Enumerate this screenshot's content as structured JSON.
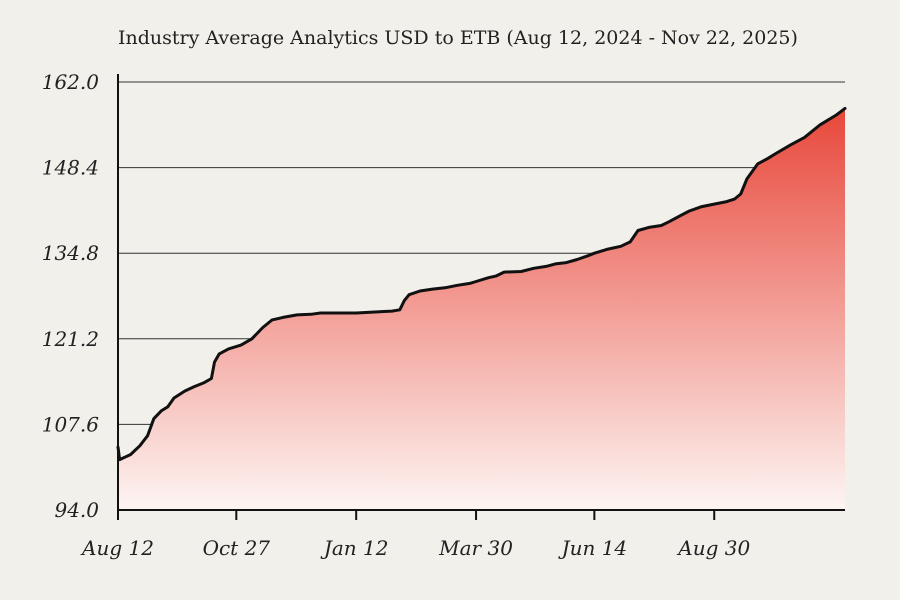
{
  "chart_data": {
    "type": "area",
    "title": "Industry Average Analytics  USD to ETB (Aug 12, 2024 - Nov 22, 2025)",
    "xlabel": "",
    "ylabel": "",
    "x_range": [
      "2024-08-12",
      "2025-11-22"
    ],
    "ylim": [
      94.0,
      162.0
    ],
    "yticks": [
      "94.0",
      "107.6",
      "121.2",
      "134.8",
      "148.4",
      "162.0"
    ],
    "xticks": [
      {
        "label": "Aug 12",
        "date": "2024-08-12"
      },
      {
        "label": "Oct 27",
        "date": "2024-10-27"
      },
      {
        "label": "Jan 12",
        "date": "2025-01-12"
      },
      {
        "label": "Mar 30",
        "date": "2025-03-30"
      },
      {
        "label": "Jun 14",
        "date": "2025-06-14"
      },
      {
        "label": "Aug 30",
        "date": "2025-08-30"
      }
    ],
    "grid": "horizontal",
    "colors": {
      "line": "#111111",
      "fill_top": "#e8473a",
      "fill_bottom": "#fdf5f3",
      "grid": "#333333",
      "background": "#f2f0eb"
    },
    "series": [
      {
        "points": [
          [
            "2024-08-12",
            104.0
          ],
          [
            "2024-08-13",
            102.0
          ],
          [
            "2024-08-20",
            102.8
          ],
          [
            "2024-08-26",
            104.2
          ],
          [
            "2024-08-31",
            105.8
          ],
          [
            "2024-09-04",
            108.5
          ],
          [
            "2024-09-09",
            109.8
          ],
          [
            "2024-09-13",
            110.4
          ],
          [
            "2024-09-17",
            111.8
          ],
          [
            "2024-09-24",
            112.9
          ],
          [
            "2024-09-30",
            113.6
          ],
          [
            "2024-10-06",
            114.2
          ],
          [
            "2024-10-11",
            114.9
          ],
          [
            "2024-10-13",
            117.5
          ],
          [
            "2024-10-16",
            118.8
          ],
          [
            "2024-10-22",
            119.6
          ],
          [
            "2024-10-30",
            120.2
          ],
          [
            "2024-11-06",
            121.2
          ],
          [
            "2024-11-13",
            123.0
          ],
          [
            "2024-11-19",
            124.2
          ],
          [
            "2024-11-26",
            124.6
          ],
          [
            "2024-12-05",
            125.0
          ],
          [
            "2024-12-14",
            125.1
          ],
          [
            "2024-12-20",
            125.3
          ],
          [
            "2025-01-03",
            125.3
          ],
          [
            "2025-01-12",
            125.3
          ],
          [
            "2025-01-27",
            125.5
          ],
          [
            "2025-02-04",
            125.6
          ],
          [
            "2025-02-09",
            125.8
          ],
          [
            "2025-02-12",
            127.3
          ],
          [
            "2025-02-15",
            128.2
          ],
          [
            "2025-02-22",
            128.8
          ],
          [
            "2025-03-02",
            129.1
          ],
          [
            "2025-03-10",
            129.3
          ],
          [
            "2025-03-18",
            129.7
          ],
          [
            "2025-03-26",
            130.0
          ],
          [
            "2025-03-30",
            130.3
          ],
          [
            "2025-04-07",
            130.9
          ],
          [
            "2025-04-12",
            131.2
          ],
          [
            "2025-04-17",
            131.8
          ],
          [
            "2025-04-28",
            131.9
          ],
          [
            "2025-05-06",
            132.4
          ],
          [
            "2025-05-14",
            132.7
          ],
          [
            "2025-05-20",
            133.1
          ],
          [
            "2025-05-27",
            133.3
          ],
          [
            "2025-06-03",
            133.8
          ],
          [
            "2025-06-10",
            134.4
          ],
          [
            "2025-06-14",
            134.8
          ],
          [
            "2025-06-22",
            135.4
          ],
          [
            "2025-07-01",
            135.9
          ],
          [
            "2025-07-07",
            136.6
          ],
          [
            "2025-07-12",
            138.4
          ],
          [
            "2025-07-19",
            138.9
          ],
          [
            "2025-07-27",
            139.2
          ],
          [
            "2025-08-01",
            139.8
          ],
          [
            "2025-08-07",
            140.6
          ],
          [
            "2025-08-14",
            141.5
          ],
          [
            "2025-08-22",
            142.2
          ],
          [
            "2025-08-30",
            142.6
          ],
          [
            "2025-09-07",
            143.0
          ],
          [
            "2025-09-12",
            143.4
          ],
          [
            "2025-09-16",
            144.2
          ],
          [
            "2025-09-20",
            146.6
          ],
          [
            "2025-09-27",
            149.0
          ],
          [
            "2025-10-03",
            149.8
          ],
          [
            "2025-10-09",
            150.7
          ],
          [
            "2025-10-18",
            152.0
          ],
          [
            "2025-10-27",
            153.2
          ],
          [
            "2025-11-06",
            155.2
          ],
          [
            "2025-11-16",
            156.7
          ],
          [
            "2025-11-22",
            157.8
          ]
        ]
      }
    ]
  }
}
